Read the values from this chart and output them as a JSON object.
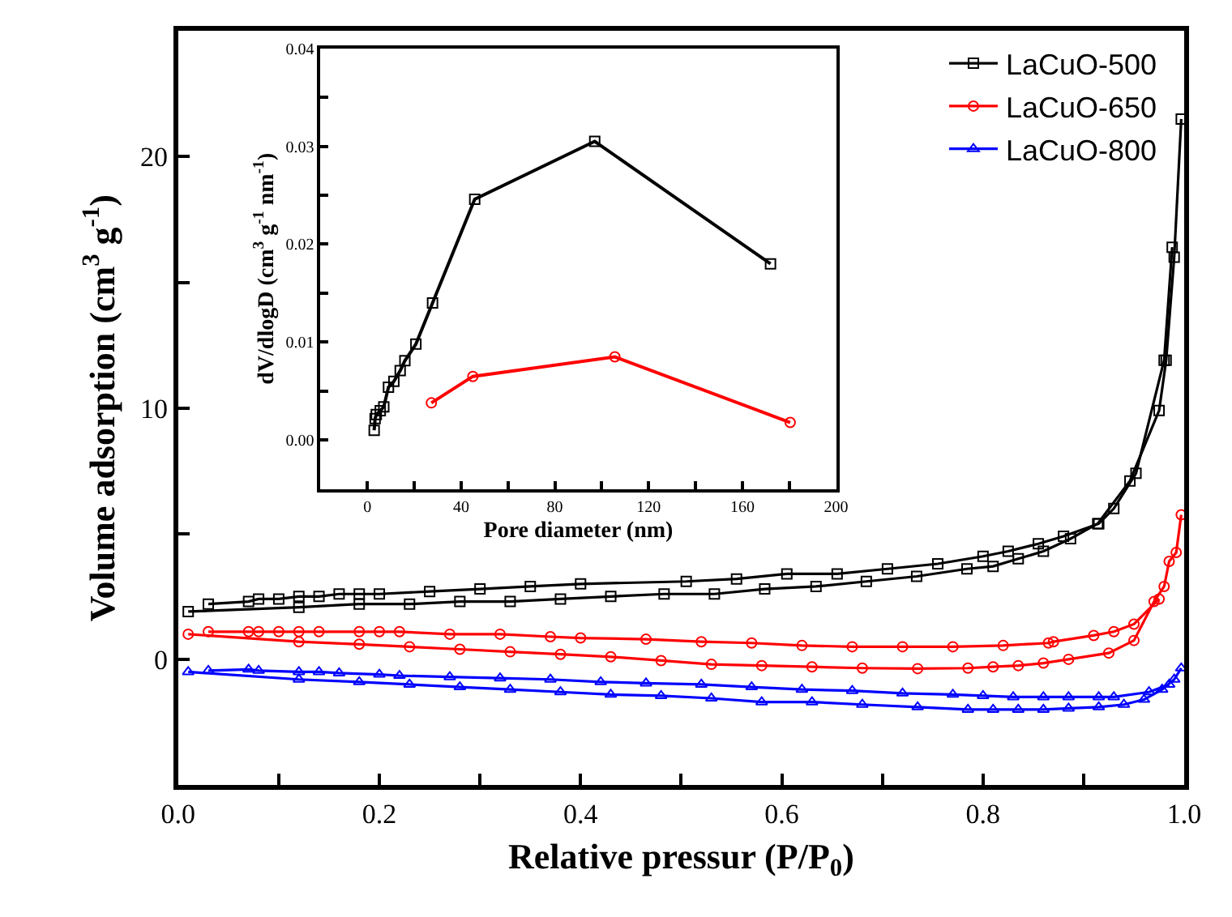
{
  "chart_data": [
    {
      "type": "line",
      "xlabel": "Relative pressur (P/P$_{0}$)",
      "ylabel": "Volume adsorption (cm$^{3}$ g$^{-1}$)",
      "xlim": [
        0,
        1
      ],
      "xticks": [
        {
          "value": 0.0,
          "label": "0.0"
        },
        {
          "value": 0.1,
          "label": null
        },
        {
          "value": 0.2,
          "label": "0.2"
        },
        {
          "value": 0.3,
          "label": null
        },
        {
          "value": 0.4,
          "label": "0.4"
        },
        {
          "value": 0.5,
          "label": null
        },
        {
          "value": 0.6,
          "label": "0.6"
        },
        {
          "value": 0.7,
          "label": null
        },
        {
          "value": 0.8,
          "label": "0.8"
        },
        {
          "value": 0.9,
          "label": null
        },
        {
          "value": 1.0,
          "label": "1.0"
        }
      ],
      "ylim": [
        -5,
        25
      ],
      "yticks": [
        {
          "value": -5,
          "label": null
        },
        0,
        {
          "value": 5,
          "label": null
        },
        10,
        {
          "value": 15,
          "label": null
        },
        20
      ],
      "legend": "top right",
      "line_style": "solid",
      "series": [
        {
          "name": "LaCuO-500",
          "color": "#000000",
          "marker": "square",
          "x": [
            0.01,
            0.12,
            0.18,
            0.23,
            0.28,
            0.33,
            0.38,
            0.43,
            0.483,
            0.533,
            0.583,
            0.634,
            0.684,
            0.734,
            0.784,
            0.81,
            0.835,
            0.86,
            0.887,
            0.914,
            0.946,
            0.975,
            0.982,
            0.99,
            0.997
          ],
          "values": [
            1.9,
            2.07,
            2.2,
            2.2,
            2.3,
            2.3,
            2.4,
            2.5,
            2.6,
            2.6,
            2.8,
            2.9,
            3.1,
            3.3,
            3.6,
            3.7,
            4.0,
            4.3,
            4.8,
            5.4,
            7.1,
            9.9,
            11.9,
            16.0,
            21.5
          ]
        },
        {
          "color": "#000000",
          "marker": "square",
          "x": [
            0.03,
            0.07,
            0.08,
            0.1,
            0.12,
            0.14,
            0.16,
            0.18,
            0.2,
            0.25,
            0.3,
            0.35,
            0.4,
            0.505,
            0.555,
            0.605,
            0.655,
            0.705,
            0.755,
            0.8,
            0.825,
            0.855,
            0.88,
            0.915,
            0.93,
            0.952,
            0.98,
            0.988
          ],
          "values": [
            2.2,
            2.3,
            2.4,
            2.4,
            2.5,
            2.5,
            2.6,
            2.6,
            2.6,
            2.7,
            2.8,
            2.9,
            3.0,
            3.1,
            3.2,
            3.4,
            3.4,
            3.6,
            3.8,
            4.1,
            4.3,
            4.6,
            4.9,
            5.4,
            6.0,
            7.4,
            11.9,
            16.4
          ]
        },
        {
          "name": "LaCuO-650",
          "color": "#ff0000",
          "marker": "circle",
          "x": [
            0.01,
            0.12,
            0.18,
            0.23,
            0.28,
            0.33,
            0.38,
            0.43,
            0.48,
            0.53,
            0.58,
            0.63,
            0.68,
            0.735,
            0.785,
            0.81,
            0.835,
            0.86,
            0.885,
            0.925,
            0.95,
            0.97,
            0.98,
            0.985,
            0.992,
            0.997
          ],
          "values": [
            1.0,
            0.7,
            0.6,
            0.5,
            0.4,
            0.3,
            0.2,
            0.1,
            -0.05,
            -0.2,
            -0.25,
            -0.3,
            -0.35,
            -0.37,
            -0.35,
            -0.3,
            -0.25,
            -0.15,
            0.0,
            0.25,
            0.75,
            2.3,
            2.9,
            3.9,
            4.25,
            5.75
          ]
        },
        {
          "color": "#ff0000",
          "marker": "circle",
          "x": [
            0.03,
            0.07,
            0.08,
            0.1,
            0.12,
            0.14,
            0.18,
            0.2,
            0.22,
            0.27,
            0.32,
            0.37,
            0.4,
            0.465,
            0.52,
            0.57,
            0.62,
            0.67,
            0.72,
            0.77,
            0.82,
            0.865,
            0.87,
            0.91,
            0.93,
            0.95,
            0.975
          ],
          "values": [
            1.1,
            1.1,
            1.1,
            1.1,
            1.1,
            1.1,
            1.1,
            1.1,
            1.1,
            1.0,
            1.0,
            0.9,
            0.85,
            0.8,
            0.7,
            0.65,
            0.55,
            0.5,
            0.5,
            0.5,
            0.55,
            0.65,
            0.7,
            0.95,
            1.1,
            1.4,
            2.4
          ]
        },
        {
          "name": "LaCuO-800",
          "color": "#0000ff",
          "marker": "triangle",
          "x": [
            0.01,
            0.12,
            0.18,
            0.23,
            0.28,
            0.33,
            0.38,
            0.43,
            0.48,
            0.53,
            0.58,
            0.63,
            0.68,
            0.735,
            0.785,
            0.81,
            0.835,
            0.86,
            0.885,
            0.915,
            0.94,
            0.96,
            0.978,
            0.99,
            0.997
          ],
          "values": [
            -0.5,
            -0.8,
            -0.9,
            -1.0,
            -1.1,
            -1.2,
            -1.3,
            -1.4,
            -1.45,
            -1.55,
            -1.7,
            -1.7,
            -1.8,
            -1.9,
            -2.0,
            -2.0,
            -2.0,
            -2.0,
            -1.95,
            -1.9,
            -1.8,
            -1.6,
            -1.2,
            -0.8,
            -0.35
          ]
        },
        {
          "color": "#0000ff",
          "marker": "triangle",
          "x": [
            0.03,
            0.07,
            0.08,
            0.12,
            0.14,
            0.16,
            0.2,
            0.22,
            0.27,
            0.32,
            0.37,
            0.42,
            0.465,
            0.52,
            0.57,
            0.62,
            0.67,
            0.72,
            0.77,
            0.8,
            0.83,
            0.86,
            0.885,
            0.915,
            0.93,
            0.965,
            0.985
          ],
          "values": [
            -0.45,
            -0.4,
            -0.45,
            -0.5,
            -0.5,
            -0.55,
            -0.6,
            -0.65,
            -0.7,
            -0.75,
            -0.8,
            -0.9,
            -0.95,
            -1.0,
            -1.1,
            -1.2,
            -1.25,
            -1.35,
            -1.4,
            -1.45,
            -1.5,
            -1.5,
            -1.5,
            -1.5,
            -1.5,
            -1.3,
            -1.0
          ]
        }
      ]
    },
    {
      "type": "line",
      "xlabel": "Pore diameter (nm)",
      "ylabel": "dV/dlogD (cm$^{3}$ g$^{-1}$ nm$^{-1}$)",
      "xlim": [
        -20,
        200
      ],
      "xticks": [
        0,
        {
          "value": 20,
          "label": null
        },
        40,
        {
          "value": 60,
          "label": null
        },
        80,
        {
          "value": 100,
          "label": null
        },
        120,
        {
          "value": 140,
          "label": null
        },
        160,
        {
          "value": 180,
          "label": null
        },
        200
      ],
      "ylim": [
        -0.005,
        0.04
      ],
      "yticks": [
        {
          "value": 0.0,
          "label": "0.00"
        },
        {
          "value": 0.005,
          "label": null
        },
        {
          "value": 0.01,
          "label": "0.01"
        },
        {
          "value": 0.015,
          "label": null
        },
        {
          "value": 0.02,
          "label": "0.02"
        },
        {
          "value": 0.025,
          "label": null
        },
        {
          "value": 0.03,
          "label": "0.03"
        },
        {
          "value": 0.035,
          "label": null
        },
        {
          "value": 0.04,
          "label": "0.04"
        }
      ],
      "legend": false,
      "line_style": "solid",
      "series": [
        {
          "color": "#000000",
          "marker": "square",
          "x": [
            2.9,
            3.3,
            3.8,
            5.5,
            7,
            9,
            11.3,
            14,
            16,
            20.7,
            27.8,
            45.8,
            97,
            172
          ],
          "values": [
            0.001,
            0.0022,
            0.0026,
            0.003,
            0.0034,
            0.0054,
            0.006,
            0.0071,
            0.0081,
            0.0098,
            0.014,
            0.0246,
            0.0305,
            0.018
          ]
        },
        {
          "color": "#ff0000",
          "marker": "circle",
          "x": [
            27.3,
            45,
            105.6,
            180.4
          ],
          "values": [
            0.0038,
            0.0065,
            0.0085,
            0.0018
          ]
        }
      ]
    }
  ]
}
